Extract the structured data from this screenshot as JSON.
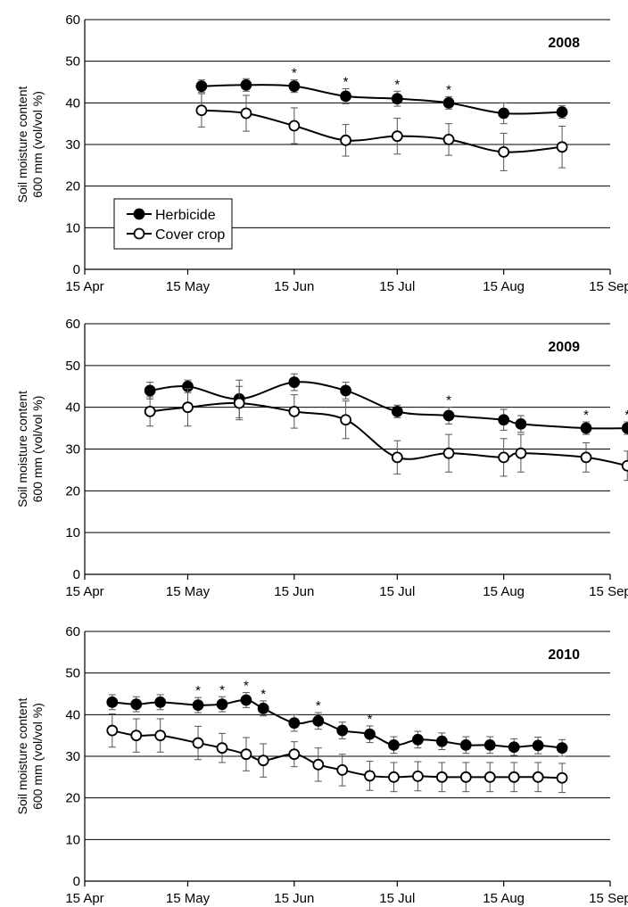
{
  "chart_data": [
    {
      "type": "line",
      "title": "2008",
      "ylabel": [
        "Soil moisture content",
        "600 mm (vol/vol %)"
      ],
      "xlabel": "",
      "ylim": [
        0,
        60
      ],
      "yticks": [
        0,
        10,
        20,
        30,
        40,
        50,
        60
      ],
      "xlim": [
        "2008-04-15",
        "2008-09-15"
      ],
      "xticks": [
        {
          "date": "2008-04-15",
          "label": "15 Apr"
        },
        {
          "date": "2008-05-15",
          "label": "15 May"
        },
        {
          "date": "2008-06-15",
          "label": "15 Jun"
        },
        {
          "date": "2008-07-15",
          "label": "15 Jul"
        },
        {
          "date": "2008-08-15",
          "label": "15 Aug"
        },
        {
          "date": "2008-09-15",
          "label": "15 Sep"
        }
      ],
      "grid": true,
      "legend": {
        "placement": "center-left",
        "entries": [
          "Herbicide",
          "Cover crop"
        ]
      },
      "series": [
        {
          "name": "Herbicide",
          "marker": "filled-circle",
          "color": "#000000",
          "x": [
            "2008-05-19",
            "2008-06-01",
            "2008-06-15",
            "2008-06-30",
            "2008-07-15",
            "2008-07-30",
            "2008-08-15",
            "2008-09-01"
          ],
          "y": [
            44,
            44.3,
            44,
            41.6,
            41,
            40,
            37.5,
            37.8
          ],
          "err": [
            1.5,
            1.5,
            1.5,
            1.8,
            1.8,
            1.5,
            2.5,
            1.5
          ]
        },
        {
          "name": "Cover crop",
          "marker": "open-circle",
          "color": "#000000",
          "x": [
            "2008-05-19",
            "2008-06-01",
            "2008-06-15",
            "2008-06-30",
            "2008-07-15",
            "2008-07-30",
            "2008-08-15",
            "2008-09-01"
          ],
          "y": [
            38.2,
            37.5,
            34.5,
            31,
            32,
            31.2,
            28.2,
            29.4
          ],
          "err": [
            4,
            4.3,
            4.3,
            3.8,
            4.3,
            3.8,
            4.5,
            5
          ]
        }
      ],
      "significance": [
        {
          "date": "2008-06-15",
          "label": "*"
        },
        {
          "date": "2008-06-30",
          "label": "*"
        },
        {
          "date": "2008-07-15",
          "label": "*"
        },
        {
          "date": "2008-07-30",
          "label": "*"
        }
      ]
    },
    {
      "type": "line",
      "title": "2009",
      "ylabel": [
        "Soil moisture content",
        "600 mm (vol/vol %)"
      ],
      "xlabel": "",
      "ylim": [
        0,
        60
      ],
      "yticks": [
        0,
        10,
        20,
        30,
        40,
        50,
        60
      ],
      "xlim": [
        "2009-04-15",
        "2009-09-15"
      ],
      "xticks": [
        {
          "date": "2009-04-15",
          "label": "15 Apr"
        },
        {
          "date": "2009-05-15",
          "label": "15 May"
        },
        {
          "date": "2009-06-15",
          "label": "15 Jun"
        },
        {
          "date": "2009-07-15",
          "label": "15 Jul"
        },
        {
          "date": "2009-08-15",
          "label": "15 Aug"
        },
        {
          "date": "2009-09-15",
          "label": "15 Sep"
        }
      ],
      "grid": true,
      "legend": null,
      "series": [
        {
          "name": "Herbicide",
          "marker": "filled-circle",
          "color": "#000000",
          "x": [
            "2009-05-04",
            "2009-05-15",
            "2009-05-30",
            "2009-06-15",
            "2009-06-30",
            "2009-07-15",
            "2009-07-30",
            "2009-08-15",
            "2009-08-20",
            "2009-09-08",
            "2009-09-20"
          ],
          "y": [
            44,
            45,
            42,
            46,
            44,
            39,
            38,
            37,
            36,
            35,
            35
          ],
          "err": [
            2,
            1.5,
            4.5,
            2,
            2,
            1.5,
            2,
            2.5,
            2,
            1.5,
            1.5
          ]
        },
        {
          "name": "Cover crop",
          "marker": "open-circle",
          "color": "#000000",
          "x": [
            "2009-05-04",
            "2009-05-15",
            "2009-05-30",
            "2009-06-15",
            "2009-06-30",
            "2009-07-15",
            "2009-07-30",
            "2009-08-15",
            "2009-08-20",
            "2009-09-08",
            "2009-09-20"
          ],
          "y": [
            39,
            40,
            41,
            39,
            37,
            28,
            29,
            28,
            29,
            28,
            26
          ],
          "err": [
            3.5,
            4.5,
            4,
            4,
            4.5,
            4,
            4.5,
            4.5,
            4.5,
            3.5,
            3.5
          ]
        }
      ],
      "significance": [
        {
          "date": "2009-07-30",
          "label": "*"
        },
        {
          "date": "2009-09-08",
          "label": "*"
        },
        {
          "date": "2009-09-20",
          "label": "*"
        }
      ]
    },
    {
      "type": "line",
      "title": "2010",
      "ylabel": [
        "Soil moisture content",
        "600 mm (vol/vol %)"
      ],
      "xlabel": "",
      "ylim": [
        0,
        60
      ],
      "yticks": [
        0,
        10,
        20,
        30,
        40,
        50,
        60
      ],
      "xlim": [
        "2010-04-15",
        "2010-09-15"
      ],
      "xticks": [
        {
          "date": "2010-04-15",
          "label": "15 Apr"
        },
        {
          "date": "2010-05-15",
          "label": "15 May"
        },
        {
          "date": "2010-06-15",
          "label": "15 Jun"
        },
        {
          "date": "2010-07-15",
          "label": "15 Jul"
        },
        {
          "date": "2010-08-15",
          "label": "15 Aug"
        },
        {
          "date": "2010-09-15",
          "label": "15 Sep"
        }
      ],
      "grid": true,
      "legend": null,
      "series": [
        {
          "name": "Herbicide",
          "marker": "filled-circle",
          "color": "#000000",
          "x": [
            "2010-04-23",
            "2010-04-30",
            "2010-05-07",
            "2010-05-18",
            "2010-05-25",
            "2010-06-01",
            "2010-06-06",
            "2010-06-15",
            "2010-06-22",
            "2010-06-29",
            "2010-07-07",
            "2010-07-14",
            "2010-07-21",
            "2010-07-28",
            "2010-08-04",
            "2010-08-11",
            "2010-08-18",
            "2010-08-25",
            "2010-09-01"
          ],
          "y": [
            43,
            42.5,
            43,
            42.3,
            42.5,
            43.5,
            41.5,
            38,
            38.5,
            36.2,
            35.3,
            32.7,
            34,
            33.6,
            32.7,
            32.7,
            32.2,
            32.6,
            32
          ],
          "err": [
            1.8,
            1.8,
            1.8,
            1.8,
            1.8,
            1.8,
            1.8,
            2,
            2,
            2,
            2,
            2,
            2,
            2,
            2,
            2,
            2,
            2,
            2
          ]
        },
        {
          "name": "Cover crop",
          "marker": "open-circle",
          "color": "#000000",
          "x": [
            "2010-04-23",
            "2010-04-30",
            "2010-05-07",
            "2010-05-18",
            "2010-05-25",
            "2010-06-01",
            "2010-06-06",
            "2010-06-15",
            "2010-06-22",
            "2010-06-29",
            "2010-07-07",
            "2010-07-14",
            "2010-07-21",
            "2010-07-28",
            "2010-08-04",
            "2010-08-11",
            "2010-08-18",
            "2010-08-25",
            "2010-09-01"
          ],
          "y": [
            36.2,
            35,
            35,
            33.2,
            32,
            30.5,
            29,
            30.5,
            28,
            26.7,
            25.3,
            25,
            25.2,
            25,
            25,
            25,
            25,
            25,
            24.8
          ],
          "err": [
            4,
            4,
            4,
            4,
            3.5,
            4,
            4,
            3,
            4,
            3.8,
            3.5,
            3.5,
            3.5,
            3.5,
            3.5,
            3.5,
            3.5,
            3.5,
            3.5
          ]
        }
      ],
      "significance": [
        {
          "date": "2010-05-18",
          "label": "*"
        },
        {
          "date": "2010-05-25",
          "label": "*"
        },
        {
          "date": "2010-06-01",
          "label": "*"
        },
        {
          "date": "2010-06-06",
          "label": "*"
        },
        {
          "date": "2010-06-22",
          "label": "*"
        },
        {
          "date": "2010-07-07",
          "label": "*"
        }
      ]
    }
  ]
}
